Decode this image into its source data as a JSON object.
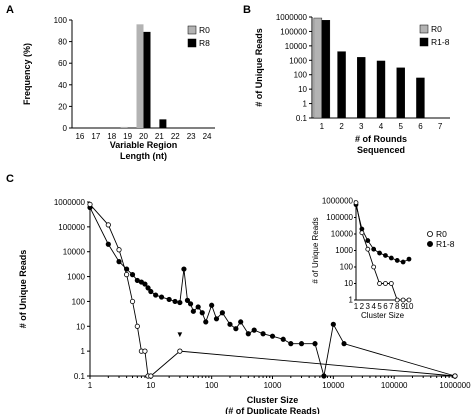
{
  "panels": {
    "a": "A",
    "b": "B",
    "c": "C"
  },
  "chart_data": [
    {
      "type": "bar",
      "panel": "A",
      "categories": [
        "16",
        "17",
        "18",
        "19",
        "20",
        "21",
        "22",
        "23",
        "24"
      ],
      "series": [
        {
          "name": "R0",
          "color": "#b3b3b3",
          "values": [
            0,
            0,
            0,
            1,
            96,
            0,
            0,
            0,
            0
          ]
        },
        {
          "name": "R8",
          "color": "#000000",
          "values": [
            0,
            0,
            0,
            0,
            89,
            8,
            0,
            0,
            0
          ]
        }
      ],
      "xlabel": "Variable Region\nLength (nt)",
      "ylabel": "Frequency (%)",
      "ylim": [
        0,
        100
      ],
      "yticks": [
        "0",
        "20",
        "40",
        "60",
        "80",
        "100"
      ],
      "legend_position": "top-right"
    },
    {
      "type": "bar",
      "panel": "B",
      "categories": [
        "1",
        "2",
        "3",
        "4",
        "5",
        "6",
        "7"
      ],
      "y_scale": "log",
      "series": [
        {
          "name": "R0",
          "color": "#b3b3b3",
          "values": [
            850000,
            null,
            null,
            null,
            null,
            null,
            null
          ]
        },
        {
          "name": "R1-8",
          "color": "#000000",
          "values": [
            600000,
            4000,
            1600,
            900,
            300,
            60,
            null
          ]
        }
      ],
      "xlabel": "# of Rounds\nSequenced",
      "ylabel": "# of Unique Reads",
      "ylim": [
        0.1,
        1000000
      ],
      "yticks": [
        "0.1",
        "1",
        "10",
        "100",
        "1000",
        "10000",
        "100000",
        "1000000"
      ],
      "legend_position": "top-right"
    },
    {
      "type": "line",
      "panel": "C",
      "x_scale": "log",
      "y_scale": "log",
      "xlabel": "Cluster Size\n(# of Duplicate Reads)",
      "ylabel": "# of Unique Reads",
      "xlim": [
        1,
        1000000
      ],
      "ylim": [
        0.1,
        1000000
      ],
      "xticks": [
        "1",
        "10",
        "100",
        "1000",
        "10000",
        "100000",
        "1000000"
      ],
      "yticks": [
        "0.1",
        "1",
        "10",
        "100",
        "1000",
        "10000",
        "100000",
        "1000000"
      ],
      "series": [
        {
          "name": "R0",
          "marker": "open-circle",
          "x": [
            1,
            2,
            3,
            4,
            5,
            6,
            7,
            8,
            9,
            10,
            30,
            1000000
          ],
          "y": [
            800000,
            120000,
            12000,
            1200,
            100,
            10,
            1,
            1,
            0.1,
            0.1,
            1,
            0.1
          ]
        },
        {
          "name": "R1-8",
          "marker": "filled-circle",
          "x": [
            1,
            2,
            3,
            4,
            5,
            6,
            7,
            8,
            9,
            10,
            12,
            15,
            20,
            25,
            30,
            35,
            40,
            45,
            50,
            60,
            70,
            80,
            100,
            120,
            150,
            200,
            250,
            300,
            400,
            500,
            700,
            1000,
            1500,
            2000,
            3000,
            5000,
            7000,
            10000,
            15000,
            1000000
          ],
          "y": [
            600000,
            20000,
            4000,
            2000,
            1200,
            700,
            600,
            500,
            350,
            250,
            180,
            150,
            120,
            100,
            90,
            2000,
            110,
            80,
            40,
            60,
            35,
            15,
            70,
            20,
            35,
            12,
            8,
            15,
            5,
            7,
            5,
            4,
            3,
            2,
            2,
            2,
            0.1,
            12,
            2,
            0.1
          ]
        }
      ],
      "legend_position": "top-right",
      "annotation": "▼",
      "inset": {
        "type": "line",
        "xlabel": "Cluster Size",
        "ylabel": "# of Unique Reads",
        "y_scale": "log",
        "xticks": [
          "1",
          "2",
          "3",
          "4",
          "5",
          "6",
          "7",
          "8",
          "9",
          "10"
        ],
        "yticks": [
          "1",
          "10",
          "100",
          "1000",
          "10000",
          "100000",
          "1000000"
        ],
        "xlim": [
          1,
          10
        ],
        "ylim": [
          1,
          1000000
        ],
        "series": [
          {
            "name": "R0",
            "marker": "open-circle",
            "x": [
              1,
              2,
              3,
              4,
              5,
              6,
              7,
              8,
              9,
              10
            ],
            "y": [
              800000,
              12000,
              1200,
              100,
              10,
              10,
              10,
              1,
              1,
              1
            ]
          },
          {
            "name": "R1-8",
            "marker": "filled-circle",
            "x": [
              1,
              2,
              3,
              4,
              5,
              6,
              7,
              8,
              9,
              10
            ],
            "y": [
              600000,
              20000,
              4000,
              1200,
              700,
              500,
              350,
              250,
              200,
              300
            ]
          }
        ]
      }
    }
  ]
}
